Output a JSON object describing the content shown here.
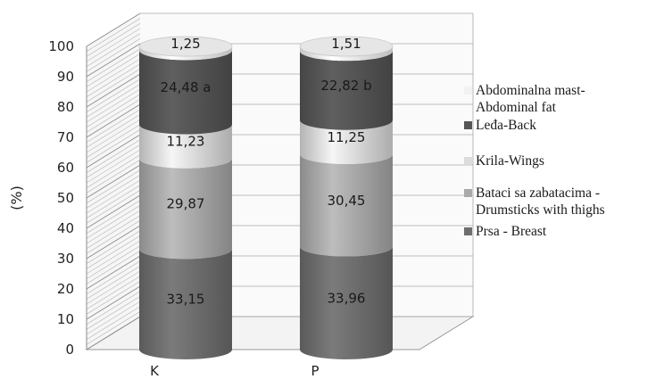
{
  "chart_data": {
    "type": "bar",
    "stacked": true,
    "style": "3d-cylinder",
    "categories": [
      "K",
      "P"
    ],
    "ylabel": "(%)",
    "xlabel": "",
    "ylim": [
      0,
      100
    ],
    "yticks": [
      "0",
      "10",
      "20",
      "30",
      "40",
      "50",
      "60",
      "70",
      "80",
      "90",
      "100"
    ],
    "grid": true,
    "legend_position": "right",
    "series": [
      {
        "name": "Prsa - Breast",
        "color": "#6e6e6e",
        "values": [
          33.15,
          33.96
        ],
        "labels": [
          "33,15",
          "33,96"
        ]
      },
      {
        "name": "Bataci sa zabatacima - Drumsticks with thighs",
        "color": "#a9a9a9",
        "values": [
          29.87,
          30.45
        ],
        "labels": [
          "29,87",
          "30,45"
        ]
      },
      {
        "name": "Krila-Wings",
        "color": "#dcdcdc",
        "values": [
          11.23,
          11.25
        ],
        "labels": [
          "11,23",
          "11,25"
        ]
      },
      {
        "name": "Leđa-Back",
        "color": "#555555",
        "values": [
          24.48,
          22.82
        ],
        "labels": [
          "24,48 a",
          "22,82 b"
        ]
      },
      {
        "name": "Abdominalna mast- Abdominal fat",
        "color": "#f2f2f2",
        "values": [
          1.25,
          1.51
        ],
        "labels": [
          "1,25",
          "1,51"
        ]
      }
    ],
    "legend_items": [
      {
        "series": 4,
        "lines": [
          "Abdominalna mast-",
          "Abdominal fat"
        ]
      },
      {
        "series": 3,
        "lines": [
          "Leđa-Back"
        ]
      },
      {
        "series": 2,
        "lines": [
          "Krila-Wings"
        ]
      },
      {
        "series": 1,
        "lines": [
          "Bataci sa zabatacima -",
          "Drumsticks with thighs"
        ]
      },
      {
        "series": 0,
        "lines": [
          "Prsa - Breast"
        ]
      }
    ]
  }
}
